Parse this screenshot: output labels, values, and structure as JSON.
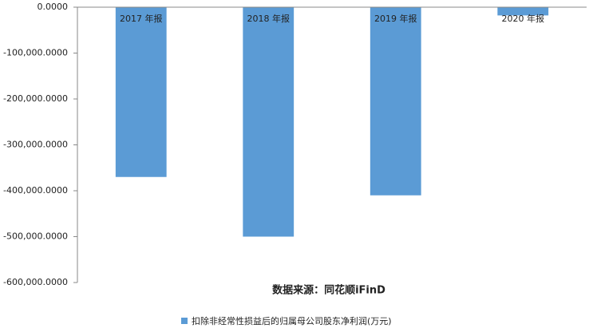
{
  "chart_data": {
    "type": "bar",
    "categories": [
      "2017 年报",
      "2018 年报",
      "2019 年报",
      "2020 年报"
    ],
    "series": [
      {
        "name": "扣除非经常性损益后的归属母公司股东净利润(万元)",
        "color": "#5b9bd5",
        "values": [
          -370000,
          -500000,
          -410000,
          -18000
        ]
      }
    ],
    "ylim": [
      -600000,
      0
    ],
    "yticks": [
      {
        "value": 0,
        "label": "0.0000"
      },
      {
        "value": -100000,
        "label": "-100,000.0000"
      },
      {
        "value": -200000,
        "label": "-200,000.0000"
      },
      {
        "value": -300000,
        "label": "-300,000.0000"
      },
      {
        "value": -400000,
        "label": "-400,000.0000"
      },
      {
        "value": -500000,
        "label": "-500,000.0000"
      },
      {
        "value": -600000,
        "label": "-600,000.0000"
      }
    ],
    "annotation": "数据来源：同花顺iFinD",
    "legend": "bottom"
  }
}
